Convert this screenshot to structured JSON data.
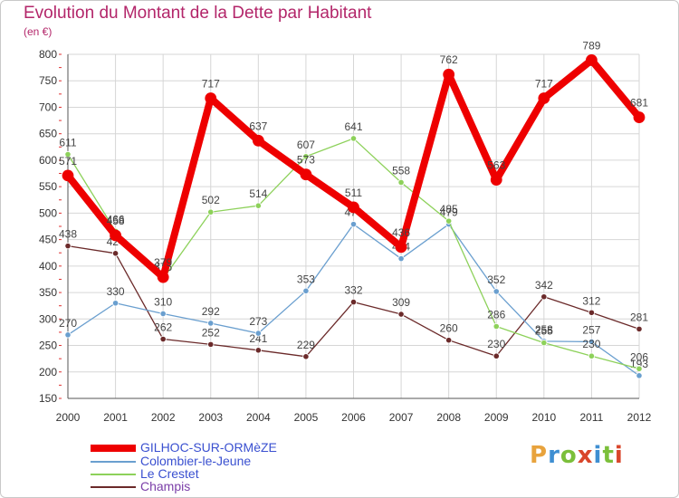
{
  "title": "Evolution du Montant de la Dette par Habitant",
  "subtitle": "(en €)",
  "logo": {
    "text": "Proxiti",
    "letters": [
      "P",
      "r",
      "o",
      "x",
      "i",
      "t",
      "i"
    ],
    "colors": [
      "#e8a33d",
      "#3f8fd2",
      "#7bbf3a",
      "#d9462b",
      "#3f8fd2",
      "#7bbf3a",
      "#d9462b"
    ]
  },
  "chart_data": {
    "type": "line",
    "x": [
      "2000",
      "2001",
      "2002",
      "2003",
      "2004",
      "2005",
      "2006",
      "2007",
      "2008",
      "2009",
      "2010",
      "2011",
      "2012"
    ],
    "ylim": [
      150,
      800
    ],
    "yticks": [
      150,
      200,
      250,
      300,
      350,
      400,
      450,
      500,
      550,
      600,
      650,
      700,
      750,
      800
    ],
    "grid": true,
    "legend_position": "bottom-left",
    "series": [
      {
        "name": "GILHOC-SUR-ORMèZE",
        "color": "#ee0000",
        "values": [
          571,
          458,
          379,
          717,
          637,
          573,
          511,
          436,
          762,
          563,
          717,
          789,
          681
        ]
      },
      {
        "name": "Colombier-le-Jeune",
        "color": "#6a9fcf",
        "values": [
          270,
          330,
          310,
          292,
          273,
          353,
          479,
          414,
          479,
          352,
          258,
          257,
          193
        ]
      },
      {
        "name": "Le Crestet",
        "color": "#8dd15a",
        "values": [
          611,
          466,
          376,
          502,
          514,
          607,
          641,
          558,
          485,
          286,
          255,
          230,
          206
        ]
      },
      {
        "name": "Champis",
        "color": "#6b2a2a",
        "values": [
          438,
          424,
          262,
          252,
          241,
          229,
          332,
          309,
          260,
          230,
          342,
          312,
          281
        ]
      }
    ]
  }
}
